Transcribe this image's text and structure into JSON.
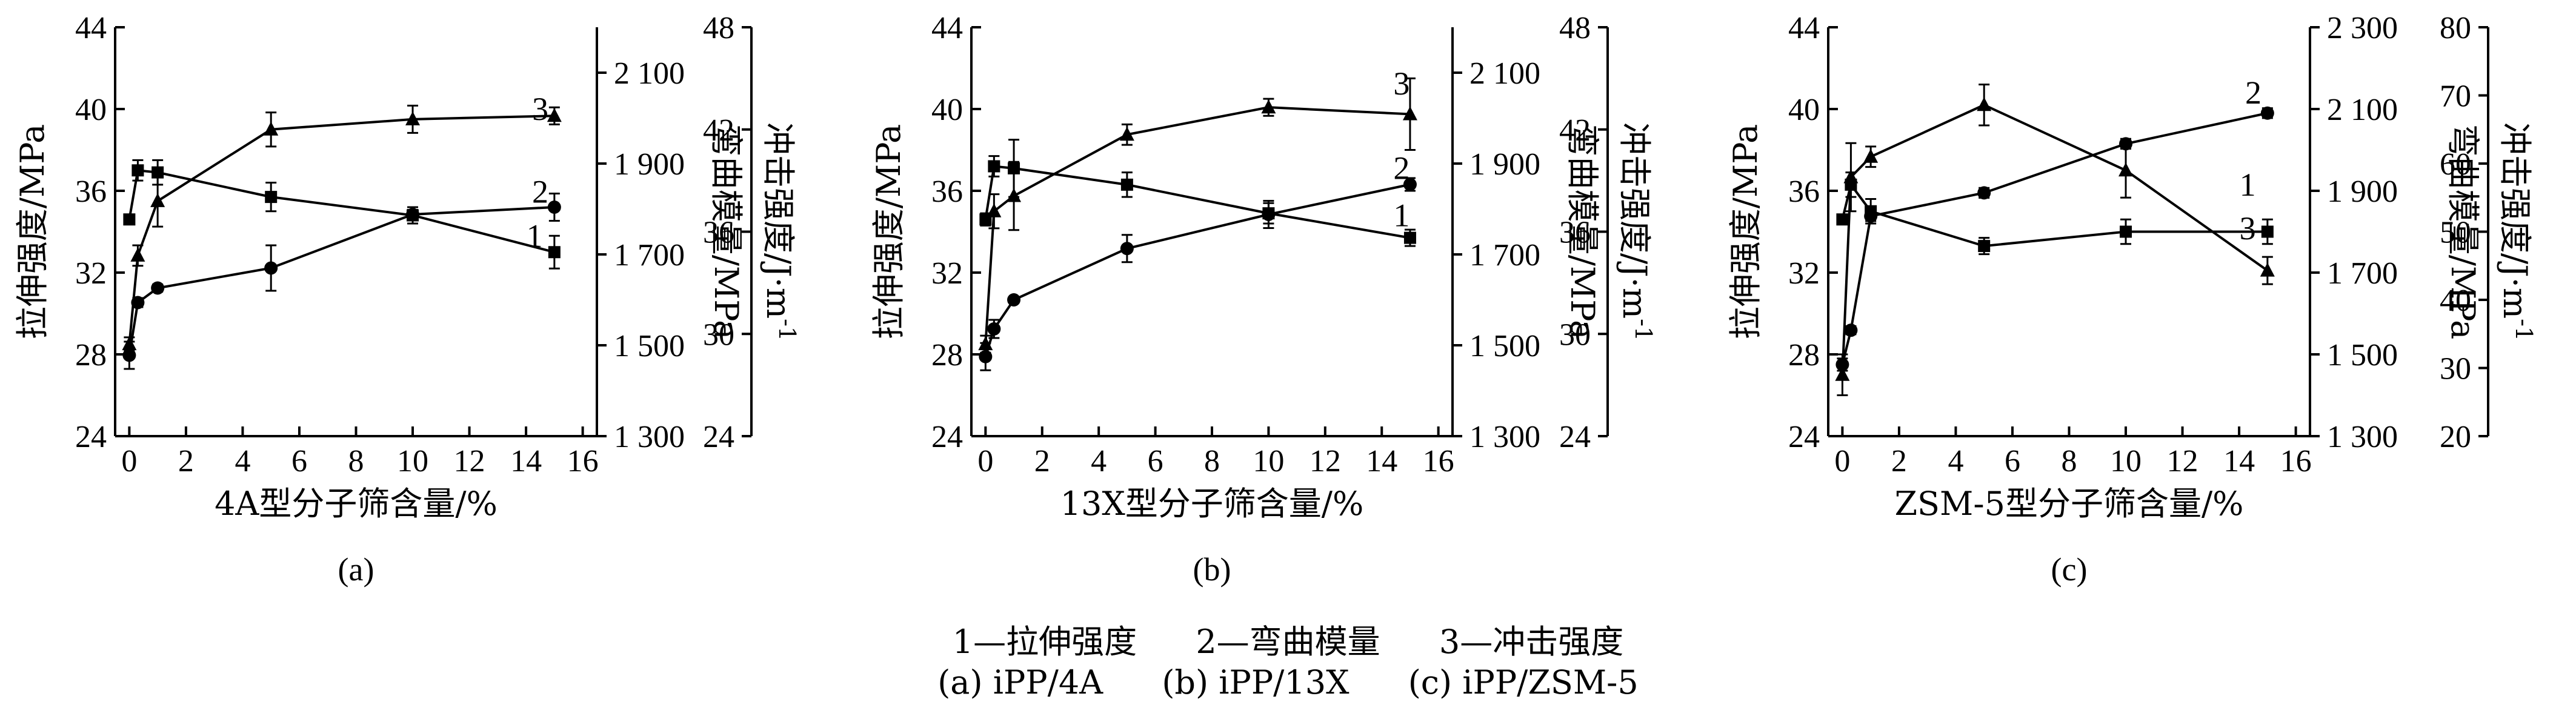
{
  "caption": {
    "legend": [
      "1—拉伸强度",
      "2—弯曲模量",
      "3—冲击强度"
    ],
    "panels": [
      "(a) iPP/4A",
      "(b) iPP/13X",
      "(c) iPP/ZSM-5"
    ]
  },
  "chart_data": [
    {
      "type": "line",
      "panel_label": "(a)",
      "xlabel": "4A型分子筛含量/%",
      "ylabel_left": "拉伸强度/MPa",
      "ylabel_right1": "弯曲模量/MPa",
      "ylabel_right2": "冲击强度/J·m",
      "ylabel_right2_sup": "-1",
      "xlim": [
        -0.5,
        16.5
      ],
      "xticks": [
        0,
        2,
        4,
        6,
        8,
        10,
        12,
        14,
        16
      ],
      "axes": {
        "left": {
          "lim": [
            24,
            44
          ],
          "ticks": [
            24,
            28,
            32,
            36,
            40,
            44
          ],
          "tick_labels": [
            "24",
            "28",
            "32",
            "36",
            "40",
            "44"
          ]
        },
        "right1": {
          "lim": [
            1300,
            2200
          ],
          "ticks": [
            1300,
            1500,
            1700,
            1900,
            2100
          ],
          "tick_labels": [
            "1 300",
            "1 500",
            "1 700",
            "1 900",
            "2 100"
          ]
        },
        "right2": {
          "lim": [
            24,
            48
          ],
          "ticks": [
            24,
            30,
            36,
            42,
            48
          ],
          "tick_labels": [
            "24",
            "30",
            "36",
            "42",
            "48"
          ]
        }
      },
      "series": [
        {
          "name": "1",
          "axis": "left",
          "marker": "square",
          "x": [
            0,
            0.3,
            1,
            5,
            10,
            15
          ],
          "y": [
            34.6,
            37.0,
            36.9,
            35.7,
            34.8,
            33.0
          ],
          "err": [
            0.2,
            0.5,
            0.6,
            0.7,
            0.4,
            0.8
          ],
          "label_pos": [
            14.3,
            33.8
          ]
        },
        {
          "name": "2",
          "axis": "right1",
          "marker": "circle",
          "x": [
            0,
            0.3,
            1,
            5,
            10,
            15
          ],
          "y": [
            1478,
            1594,
            1626,
            1670,
            1788,
            1804
          ],
          "err": [
            30,
            10,
            8,
            50,
            10,
            30
          ],
          "label_pos": [
            14.5,
            1838
          ]
        },
        {
          "name": "3",
          "axis": "right2",
          "marker": "triangle",
          "x": [
            0,
            0.3,
            1,
            5,
            10,
            15
          ],
          "y": [
            29.4,
            34.6,
            37.8,
            42.0,
            42.6,
            42.8
          ],
          "err": [
            0.4,
            0.6,
            1.5,
            1.0,
            0.8,
            0.5
          ],
          "label_pos": [
            14.5,
            43.2
          ]
        }
      ]
    },
    {
      "type": "line",
      "panel_label": "(b)",
      "xlabel": "13X型分子筛含量/%",
      "ylabel_left": "拉伸强度/MPa",
      "ylabel_right1": "弯曲模量/MPa",
      "ylabel_right2": "冲击强度/J·m",
      "ylabel_right2_sup": "-1",
      "xlim": [
        -0.5,
        16.5
      ],
      "xticks": [
        0,
        2,
        4,
        6,
        8,
        10,
        12,
        14,
        16
      ],
      "axes": {
        "left": {
          "lim": [
            24,
            44
          ],
          "ticks": [
            24,
            28,
            32,
            36,
            40,
            44
          ],
          "tick_labels": [
            "24",
            "28",
            "32",
            "36",
            "40",
            "44"
          ]
        },
        "right1": {
          "lim": [
            1300,
            2200
          ],
          "ticks": [
            1300,
            1500,
            1700,
            1900,
            2100
          ],
          "tick_labels": [
            "1 300",
            "1 500",
            "1 700",
            "1 900",
            "2 100"
          ]
        },
        "right2": {
          "lim": [
            24,
            48
          ],
          "ticks": [
            24,
            30,
            36,
            42,
            48
          ],
          "tick_labels": [
            "24",
            "30",
            "36",
            "42",
            "48"
          ]
        }
      },
      "series": [
        {
          "name": "1",
          "axis": "left",
          "marker": "square",
          "x": [
            0,
            0.3,
            1,
            5,
            10,
            15
          ],
          "y": [
            34.6,
            37.2,
            37.1,
            36.3,
            34.9,
            33.7
          ],
          "err": [
            0.3,
            0.5,
            1.4,
            0.6,
            0.5,
            0.4
          ],
          "label_pos": [
            14.7,
            34.8
          ]
        },
        {
          "name": "2",
          "axis": "right1",
          "marker": "circle",
          "x": [
            0,
            0.3,
            1,
            5,
            10,
            15
          ],
          "y": [
            1475,
            1536,
            1600,
            1713,
            1788,
            1854
          ],
          "err": [
            30,
            20,
            6,
            30,
            30,
            14
          ],
          "label_pos": [
            14.7,
            1890
          ]
        },
        {
          "name": "3",
          "axis": "right2",
          "marker": "triangle",
          "x": [
            0,
            0.3,
            1,
            5,
            10,
            15
          ],
          "y": [
            29.4,
            37.2,
            38.1,
            41.7,
            43.3,
            42.9
          ],
          "err": [
            0.5,
            1.0,
            2.0,
            0.6,
            0.5,
            2.1
          ],
          "label_pos": [
            14.7,
            44.7
          ]
        }
      ]
    },
    {
      "type": "line",
      "panel_label": "(c)",
      "xlabel": "ZSM-5型分子筛含量/%",
      "ylabel_left": "拉伸强度/MPa",
      "ylabel_right1": "弯曲模量/MPa",
      "ylabel_right2": "冲击强度/J·m",
      "ylabel_right2_sup": "-1",
      "xlim": [
        -0.5,
        16.5
      ],
      "xticks": [
        0,
        2,
        4,
        6,
        8,
        10,
        12,
        14,
        16
      ],
      "axes": {
        "left": {
          "lim": [
            24,
            44
          ],
          "ticks": [
            24,
            28,
            32,
            36,
            40,
            44
          ],
          "tick_labels": [
            "24",
            "28",
            "32",
            "36",
            "40",
            "44"
          ]
        },
        "right1": {
          "lim": [
            1300,
            2300
          ],
          "ticks": [
            1300,
            1500,
            1700,
            1900,
            2100,
            2300
          ],
          "tick_labels": [
            "1 300",
            "1 500",
            "1 700",
            "1 900",
            "2 100",
            "2 300"
          ]
        },
        "right2": {
          "lim": [
            20,
            80
          ],
          "ticks": [
            20,
            30,
            40,
            50,
            60,
            70,
            80
          ],
          "tick_labels": [
            "20",
            "30",
            "40",
            "50",
            "60",
            "70",
            "80"
          ]
        }
      },
      "series": [
        {
          "name": "1",
          "axis": "left",
          "marker": "square",
          "x": [
            0,
            0.3,
            1,
            5,
            10,
            15
          ],
          "y": [
            34.6,
            36.3,
            35.0,
            33.3,
            34.0,
            34.0
          ],
          "err": [
            0.2,
            0.6,
            0.6,
            0.4,
            0.6,
            0.6
          ],
          "label_pos": [
            14.3,
            36.3
          ]
        },
        {
          "name": "2",
          "axis": "right1",
          "marker": "circle",
          "x": [
            0,
            0.3,
            1,
            5,
            10,
            15
          ],
          "y": [
            1475,
            1559,
            1838,
            1895,
            2015,
            2090
          ],
          "err": [
            15,
            10,
            12,
            12,
            12,
            12
          ],
          "label_pos": [
            14.5,
            2140
          ]
        },
        {
          "name": "3",
          "axis": "right2",
          "marker": "triangle",
          "x": [
            0,
            0.3,
            1,
            5,
            10,
            15
          ],
          "y": [
            29.0,
            58.0,
            61.0,
            68.6,
            59.0,
            44.3
          ],
          "err": [
            3.0,
            5.0,
            1.5,
            3.0,
            4.0,
            2.0
          ],
          "label_pos": [
            14.3,
            50.5
          ]
        }
      ]
    }
  ]
}
